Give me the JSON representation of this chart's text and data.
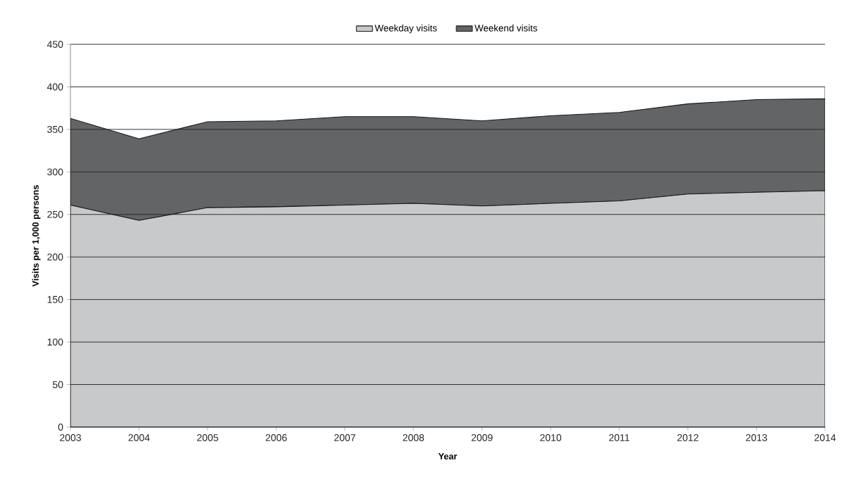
{
  "chart_data": {
    "type": "area",
    "stacked": true,
    "xlabel": "Year",
    "ylabel": "Visits per 1,000 persons",
    "x": [
      2003,
      2004,
      2005,
      2006,
      2007,
      2008,
      2009,
      2010,
      2011,
      2012,
      2013,
      2014
    ],
    "series": [
      {
        "name": "Weekday visits",
        "color": "#c8c9cb",
        "values": [
          261,
          243,
          258,
          259,
          261,
          263,
          260,
          263,
          266,
          274,
          276,
          278
        ]
      },
      {
        "name": "Weekend visits",
        "color": "#636466",
        "values": [
          102,
          96,
          101,
          101,
          104,
          102,
          100,
          103,
          104,
          106,
          109,
          108
        ]
      }
    ],
    "xlim": [
      2003,
      2014
    ],
    "ylim": [
      0,
      450
    ],
    "xticks": [
      2003,
      2004,
      2005,
      2006,
      2007,
      2008,
      2009,
      2010,
      2011,
      2012,
      2013,
      2014
    ],
    "yticks": [
      0,
      50,
      100,
      150,
      200,
      250,
      300,
      350,
      400,
      450
    ],
    "grid": "y",
    "legend": "top"
  }
}
